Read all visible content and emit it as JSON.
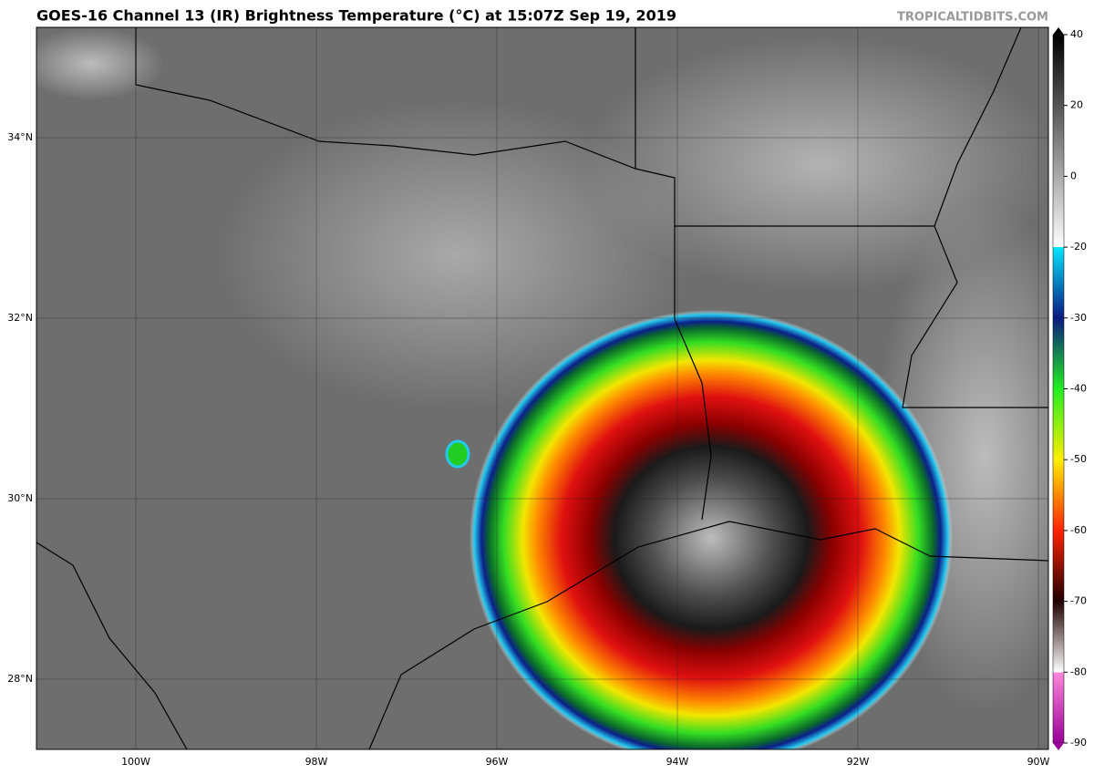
{
  "header": {
    "title": "GOES-16 Channel 13 (IR) Brightness Temperature (°C) at 15:07Z Sep 19, 2019",
    "watermark": "TROPICALTIDBITS.COM"
  },
  "map": {
    "lat_labels": [
      "34°N",
      "32°N",
      "30°N",
      "28°N"
    ],
    "lon_labels": [
      "100W",
      "98W",
      "96W",
      "94W",
      "92W",
      "90W"
    ]
  },
  "colorbar": {
    "ticks": [
      40,
      20,
      0,
      -20,
      -30,
      -40,
      -50,
      -60,
      -70,
      -80,
      -90
    ]
  }
}
